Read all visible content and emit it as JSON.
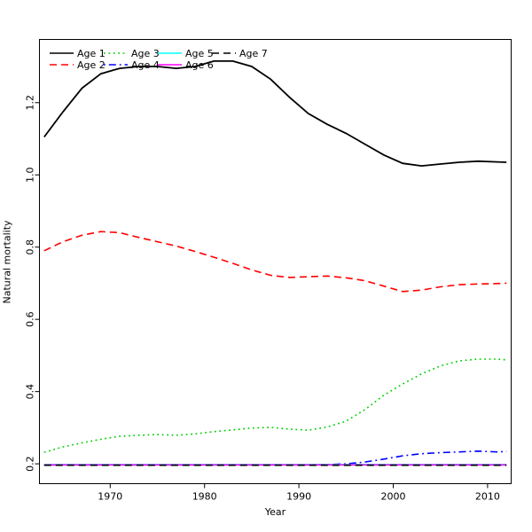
{
  "chart_data": {
    "type": "line",
    "title": "",
    "xlabel": "Year",
    "ylabel": "Natural mortality",
    "x_ticks": [
      1970,
      1980,
      1990,
      2000,
      2010
    ],
    "y_ticks": [
      0.2,
      0.4,
      0.6,
      0.8,
      1.0,
      1.2
    ],
    "x_range": [
      1962.5,
      2012.5
    ],
    "y_range": [
      0.145,
      1.375
    ],
    "grid": false,
    "legend": {
      "position": "top-left",
      "columns": 4,
      "rows": 2
    },
    "x": [
      1963,
      1965,
      1967,
      1969,
      1971,
      1973,
      1975,
      1977,
      1979,
      1981,
      1983,
      1985,
      1987,
      1989,
      1991,
      1993,
      1995,
      1997,
      1999,
      2001,
      2003,
      2005,
      2007,
      2009,
      2011,
      2012
    ],
    "series": [
      {
        "name": "Age 1",
        "color": "#000000",
        "style": "solid",
        "values": [
          1.105,
          1.175,
          1.24,
          1.28,
          1.295,
          1.3,
          1.3,
          1.295,
          1.3,
          1.315,
          1.315,
          1.3,
          1.265,
          1.215,
          1.17,
          1.14,
          1.115,
          1.085,
          1.055,
          1.032,
          1.025,
          1.03,
          1.035,
          1.038,
          1.036,
          1.035
        ]
      },
      {
        "name": "Age 2",
        "color": "#FF0000",
        "style": "dashed",
        "values": [
          0.79,
          0.815,
          0.833,
          0.843,
          0.84,
          0.827,
          0.815,
          0.803,
          0.788,
          0.772,
          0.755,
          0.737,
          0.722,
          0.716,
          0.718,
          0.72,
          0.715,
          0.707,
          0.692,
          0.677,
          0.681,
          0.69,
          0.696,
          0.698,
          0.699,
          0.7
        ]
      },
      {
        "name": "Age 3",
        "color": "#00CD00",
        "style": "dotted",
        "values": [
          0.232,
          0.247,
          0.258,
          0.268,
          0.276,
          0.279,
          0.281,
          0.279,
          0.283,
          0.289,
          0.294,
          0.299,
          0.301,
          0.296,
          0.293,
          0.302,
          0.318,
          0.35,
          0.39,
          0.421,
          0.449,
          0.471,
          0.485,
          0.49,
          0.49,
          0.488
        ]
      },
      {
        "name": "Age 4",
        "color": "#0000FF",
        "style": "dashdot",
        "values": [
          0.197,
          0.197,
          0.197,
          0.197,
          0.197,
          0.197,
          0.197,
          0.197,
          0.197,
          0.197,
          0.197,
          0.197,
          0.197,
          0.197,
          0.197,
          0.198,
          0.2,
          0.205,
          0.213,
          0.222,
          0.228,
          0.231,
          0.233,
          0.235,
          0.233,
          0.234
        ]
      },
      {
        "name": "Age 5",
        "color": "#00FFFF",
        "style": "solid",
        "values": [
          0.198,
          0.198,
          0.198,
          0.198,
          0.198,
          0.198,
          0.198,
          0.198,
          0.198,
          0.198,
          0.198,
          0.198,
          0.198,
          0.198,
          0.198,
          0.198,
          0.198,
          0.198,
          0.198,
          0.198,
          0.198,
          0.198,
          0.198,
          0.198,
          0.198,
          0.198
        ]
      },
      {
        "name": "Age 6",
        "color": "#FF00FF",
        "style": "solid",
        "values": [
          0.197,
          0.197,
          0.197,
          0.197,
          0.197,
          0.197,
          0.197,
          0.197,
          0.197,
          0.197,
          0.197,
          0.197,
          0.197,
          0.197,
          0.197,
          0.197,
          0.197,
          0.197,
          0.197,
          0.197,
          0.197,
          0.197,
          0.197,
          0.197,
          0.197,
          0.197
        ]
      },
      {
        "name": "Age 7",
        "color": "#000000",
        "style": "dashed",
        "values": [
          0.196,
          0.196,
          0.196,
          0.196,
          0.196,
          0.196,
          0.196,
          0.196,
          0.196,
          0.196,
          0.196,
          0.196,
          0.196,
          0.196,
          0.196,
          0.196,
          0.196,
          0.196,
          0.196,
          0.196,
          0.196,
          0.196,
          0.196,
          0.196,
          0.196,
          0.196
        ]
      }
    ]
  }
}
